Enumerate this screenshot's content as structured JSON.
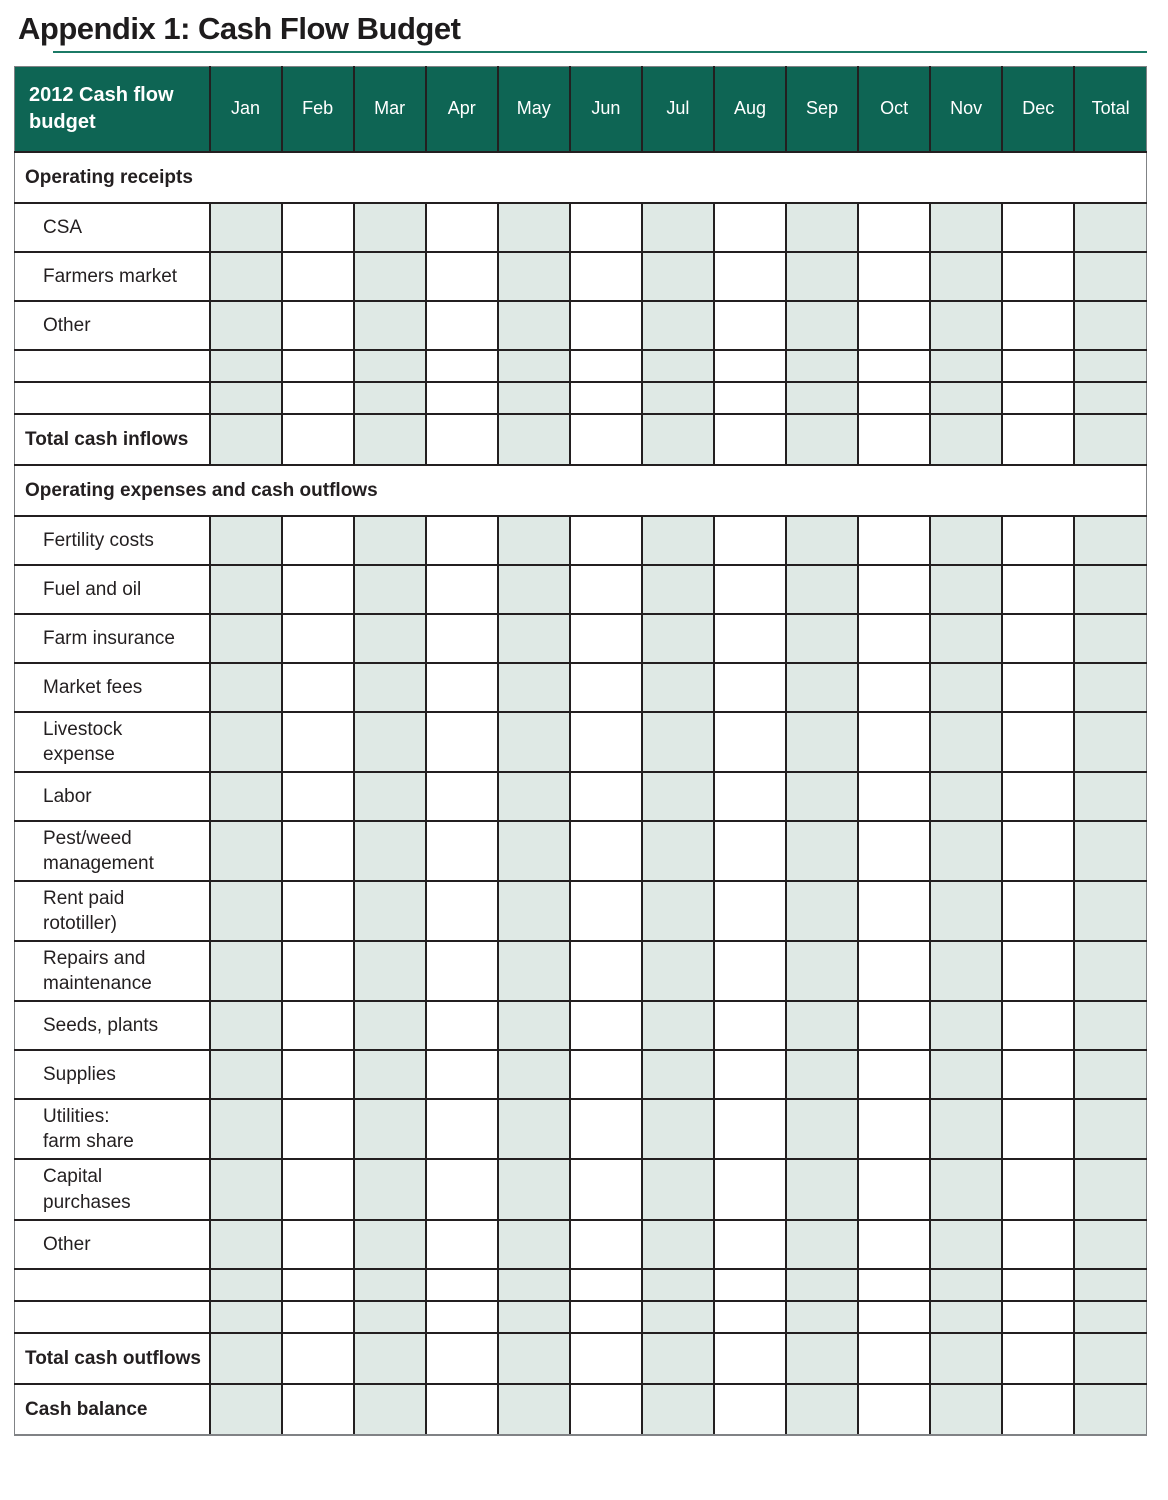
{
  "page": {
    "title": "Appendix 1: Cash Flow Budget"
  },
  "table": {
    "header": {
      "label": "2012 Cash flow budget",
      "months": [
        "Jan",
        "Feb",
        "Mar",
        "Apr",
        "May",
        "Jun",
        "Jul",
        "Aug",
        "Sep",
        "Oct",
        "Nov",
        "Dec"
      ],
      "total_label": "Total"
    },
    "shaded_column_indexes": [
      0,
      2,
      4,
      6,
      8,
      10,
      12
    ],
    "rows": [
      {
        "type": "section",
        "label": "Operating receipts"
      },
      {
        "type": "item",
        "label": "CSA"
      },
      {
        "type": "item",
        "label": "Farmers market"
      },
      {
        "type": "item",
        "label": "Other"
      },
      {
        "type": "blank",
        "label": ""
      },
      {
        "type": "blank",
        "label": ""
      },
      {
        "type": "total",
        "label": "Total cash inflows"
      },
      {
        "type": "section",
        "label": "Operating expenses and cash outflows"
      },
      {
        "type": "item",
        "label": "Fertility costs"
      },
      {
        "type": "item",
        "label": "Fuel and oil"
      },
      {
        "type": "item",
        "label": "Farm insurance"
      },
      {
        "type": "item",
        "label": "Market fees"
      },
      {
        "type": "item",
        "label": "Livestock\nexpense"
      },
      {
        "type": "item",
        "label": "Labor"
      },
      {
        "type": "item",
        "label": "Pest/weed\nmanagement"
      },
      {
        "type": "item",
        "label": "Rent paid\nrototiller)"
      },
      {
        "type": "item",
        "label": "Repairs and\nmaintenance"
      },
      {
        "type": "item",
        "label": "Seeds, plants"
      },
      {
        "type": "item",
        "label": "Supplies"
      },
      {
        "type": "item",
        "label": "Utilities:\nfarm share"
      },
      {
        "type": "item",
        "label": "Capital\npurchases"
      },
      {
        "type": "item",
        "label": "Other"
      },
      {
        "type": "blank",
        "label": ""
      },
      {
        "type": "blank",
        "label": ""
      },
      {
        "type": "total",
        "label": "Total cash outflows"
      },
      {
        "type": "total",
        "label": "Cash balance"
      }
    ]
  },
  "colors": {
    "header_bg": "#0e6554",
    "header_text": "#ffffff",
    "shaded_cell": "#dfe9e5",
    "grid_border": "#231f20",
    "title_rule": "#1b7a66"
  }
}
